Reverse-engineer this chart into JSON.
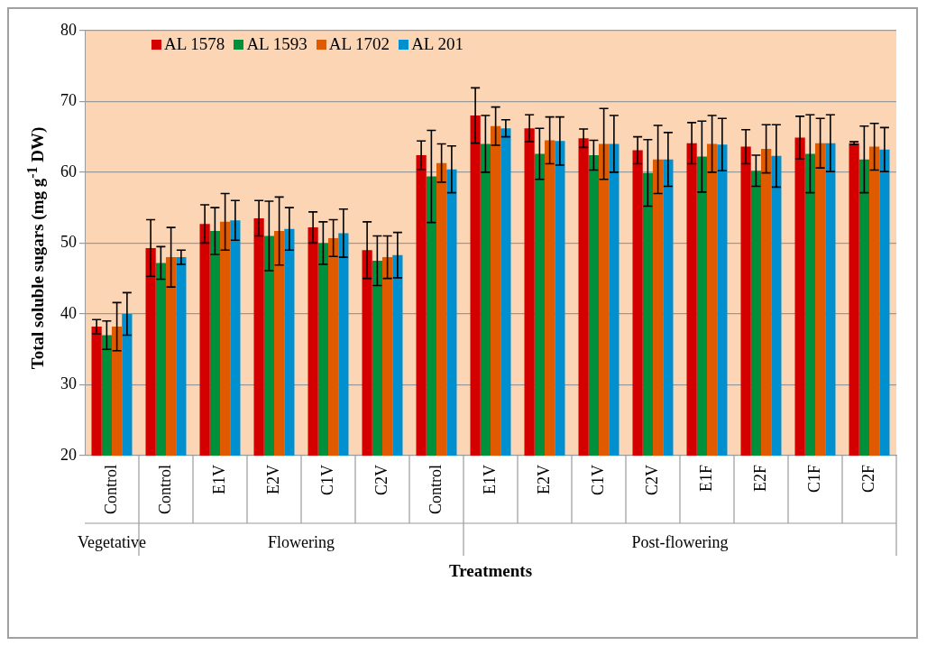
{
  "chart_data": {
    "type": "bar",
    "xlabel": "Treatments",
    "ylabel": "Total soluble sugars (mg g$^{-1}$ DW)",
    "categories": [
      "Control",
      "Control",
      "E1V",
      "E2V",
      "C1V",
      "C2V",
      "Control",
      "E1V",
      "E2V",
      "C1V",
      "C2V",
      "E1F",
      "E2F",
      "C1F",
      "C2F"
    ],
    "series": [
      {
        "name": "AL 1578",
        "color": "#d40000",
        "values": [
          38.2,
          49.3,
          52.7,
          53.5,
          52.2,
          49,
          62.4,
          68,
          66.2,
          64.8,
          63.1,
          64.1,
          63.6,
          64.9,
          64.1
        ],
        "errors": [
          1,
          4,
          2.7,
          2.5,
          2.2,
          4,
          2,
          3.9,
          1.9,
          1.3,
          1.9,
          2.9,
          2.4,
          3,
          0.2
        ]
      },
      {
        "name": "AL 1593",
        "color": "#00903c",
        "values": [
          37,
          47.2,
          51.7,
          51,
          50,
          47.5,
          59.4,
          64,
          62.6,
          62.4,
          59.9,
          62.2,
          60.2,
          62.6,
          61.8
        ],
        "errors": [
          2,
          2.3,
          3.3,
          4.9,
          3,
          3.5,
          6.5,
          4,
          3.6,
          2.1,
          4.7,
          5,
          2.2,
          5.5,
          4.7
        ]
      },
      {
        "name": "AL 1702",
        "color": "#e05a00",
        "values": [
          38.2,
          48,
          53,
          51.7,
          50.7,
          48,
          61.3,
          66.5,
          64.5,
          64,
          61.8,
          64,
          63.3,
          64.1,
          63.6
        ],
        "errors": [
          3.4,
          4.2,
          4,
          4.8,
          2.6,
          3,
          2.7,
          2.7,
          3.3,
          5,
          4.8,
          4,
          3.4,
          3.5,
          3.3
        ]
      },
      {
        "name": "AL 201",
        "color": "#0090d0",
        "values": [
          40,
          48,
          53.2,
          52,
          51.4,
          48.3,
          60.4,
          66.2,
          64.4,
          64,
          61.8,
          63.9,
          62.3,
          64.1,
          63.2
        ],
        "errors": [
          3,
          1,
          2.8,
          3,
          3.4,
          3.2,
          3.3,
          1.2,
          3.4,
          4,
          3.8,
          3.7,
          4.4,
          4,
          3.1
        ]
      }
    ],
    "ylim": [
      20,
      80
    ],
    "yticks": [
      20,
      30,
      40,
      50,
      60,
      70,
      80
    ],
    "grid": "y",
    "legend": "top left",
    "annotations": [
      "Vegetative",
      "Flowering",
      "Post-flowering"
    ]
  }
}
